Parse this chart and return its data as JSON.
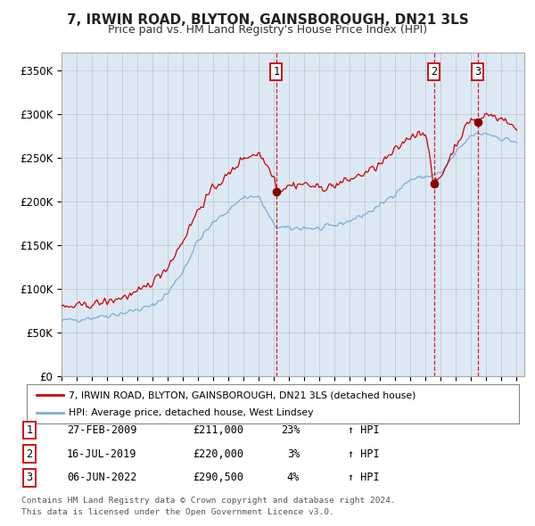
{
  "title": "7, IRWIN ROAD, BLYTON, GAINSBOROUGH, DN21 3LS",
  "subtitle": "Price paid vs. HM Land Registry's House Price Index (HPI)",
  "ylabel_ticks": [
    "£0",
    "£50K",
    "£100K",
    "£150K",
    "£200K",
    "£250K",
    "£300K",
    "£350K"
  ],
  "ytick_vals": [
    0,
    50000,
    100000,
    150000,
    200000,
    250000,
    300000,
    350000
  ],
  "ylim": [
    0,
    370000
  ],
  "xlim_start": 1995.0,
  "xlim_end": 2025.5,
  "background_color": "#ffffff",
  "plot_bg_color": "#dce9f5",
  "grid_color": "#bbbbbb",
  "hpi_line_color": "#7bafd4",
  "price_line_color": "#cc0000",
  "purchase_dot_color": "#880000",
  "vline_color": "#cc0000",
  "transaction_label_color": "#cc0000",
  "legend_text_red": "7, IRWIN ROAD, BLYTON, GAINSBOROUGH, DN21 3LS (detached house)",
  "legend_text_blue": "HPI: Average price, detached house, West Lindsey",
  "transactions": [
    {
      "num": 1,
      "date_dec": 2009.15,
      "price": 211000,
      "label": "27-FEB-2009",
      "price_str": "£211,000",
      "pct": "23%",
      "dir": "↑"
    },
    {
      "num": 2,
      "date_dec": 2019.54,
      "price": 220000,
      "label": "16-JUL-2019",
      "price_str": "£220,000",
      "pct": "3%",
      "dir": "↑"
    },
    {
      "num": 3,
      "date_dec": 2022.43,
      "price": 290500,
      "label": "06-JUN-2022",
      "price_str": "£290,500",
      "pct": "4%",
      "dir": "↑"
    }
  ],
  "footer_line1": "Contains HM Land Registry data © Crown copyright and database right 2024.",
  "footer_line2": "This data is licensed under the Open Government Licence v3.0."
}
